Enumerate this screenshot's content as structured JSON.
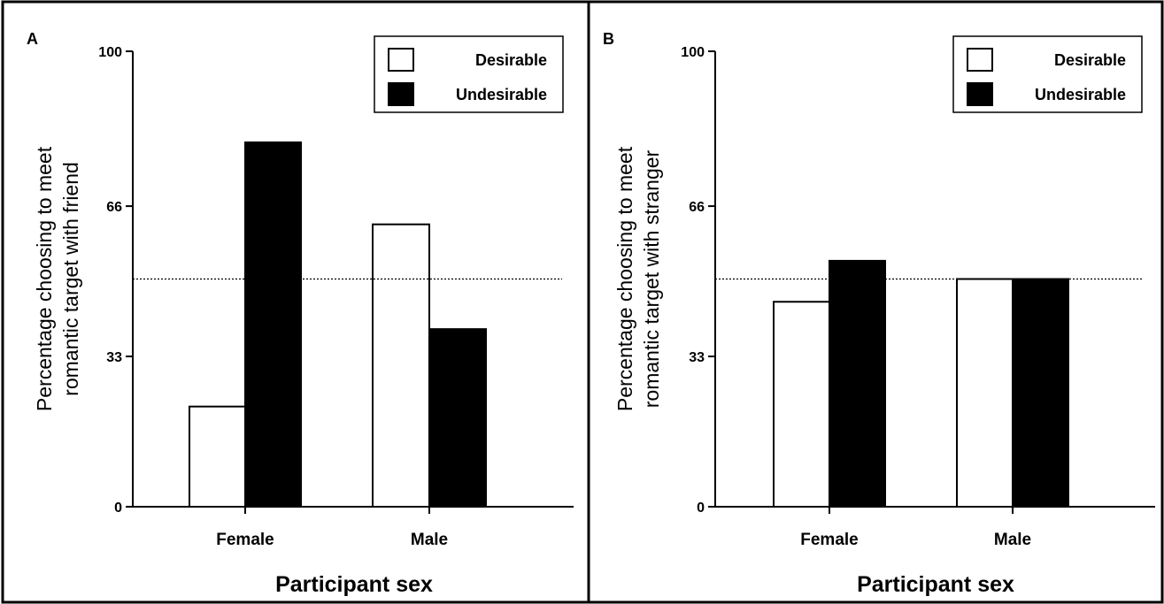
{
  "chart_data": [
    {
      "type": "bar",
      "panel": "A",
      "categories": [
        "Female",
        "Male"
      ],
      "series": [
        {
          "name": "Desirable",
          "values": [
            22,
            62
          ],
          "color": "#ffffff"
        },
        {
          "name": "Undesirable",
          "values": [
            80,
            39
          ],
          "color": "#000000"
        }
      ],
      "xlabel": "Participant sex",
      "ylabel": [
        "Percentage choosing to meet",
        "romantic target with friend"
      ],
      "yticks": [
        "0",
        "33",
        "66",
        "100"
      ],
      "ylim": [
        0,
        100
      ],
      "reference_line": 50,
      "legend_position": "top-right",
      "grid": false
    },
    {
      "type": "bar",
      "panel": "B",
      "categories": [
        "Female",
        "Male"
      ],
      "series": [
        {
          "name": "Desirable",
          "values": [
            45,
            50
          ],
          "color": "#ffffff"
        },
        {
          "name": "Undesirable",
          "values": [
            54,
            50
          ],
          "color": "#000000"
        }
      ],
      "xlabel": "Participant sex",
      "ylabel": [
        "Percentage choosing to meet",
        "romantic target with stranger"
      ],
      "yticks": [
        "0",
        "33",
        "66",
        "100"
      ],
      "ylim": [
        0,
        100
      ],
      "reference_line": 50,
      "legend_position": "top-right",
      "grid": false
    }
  ]
}
